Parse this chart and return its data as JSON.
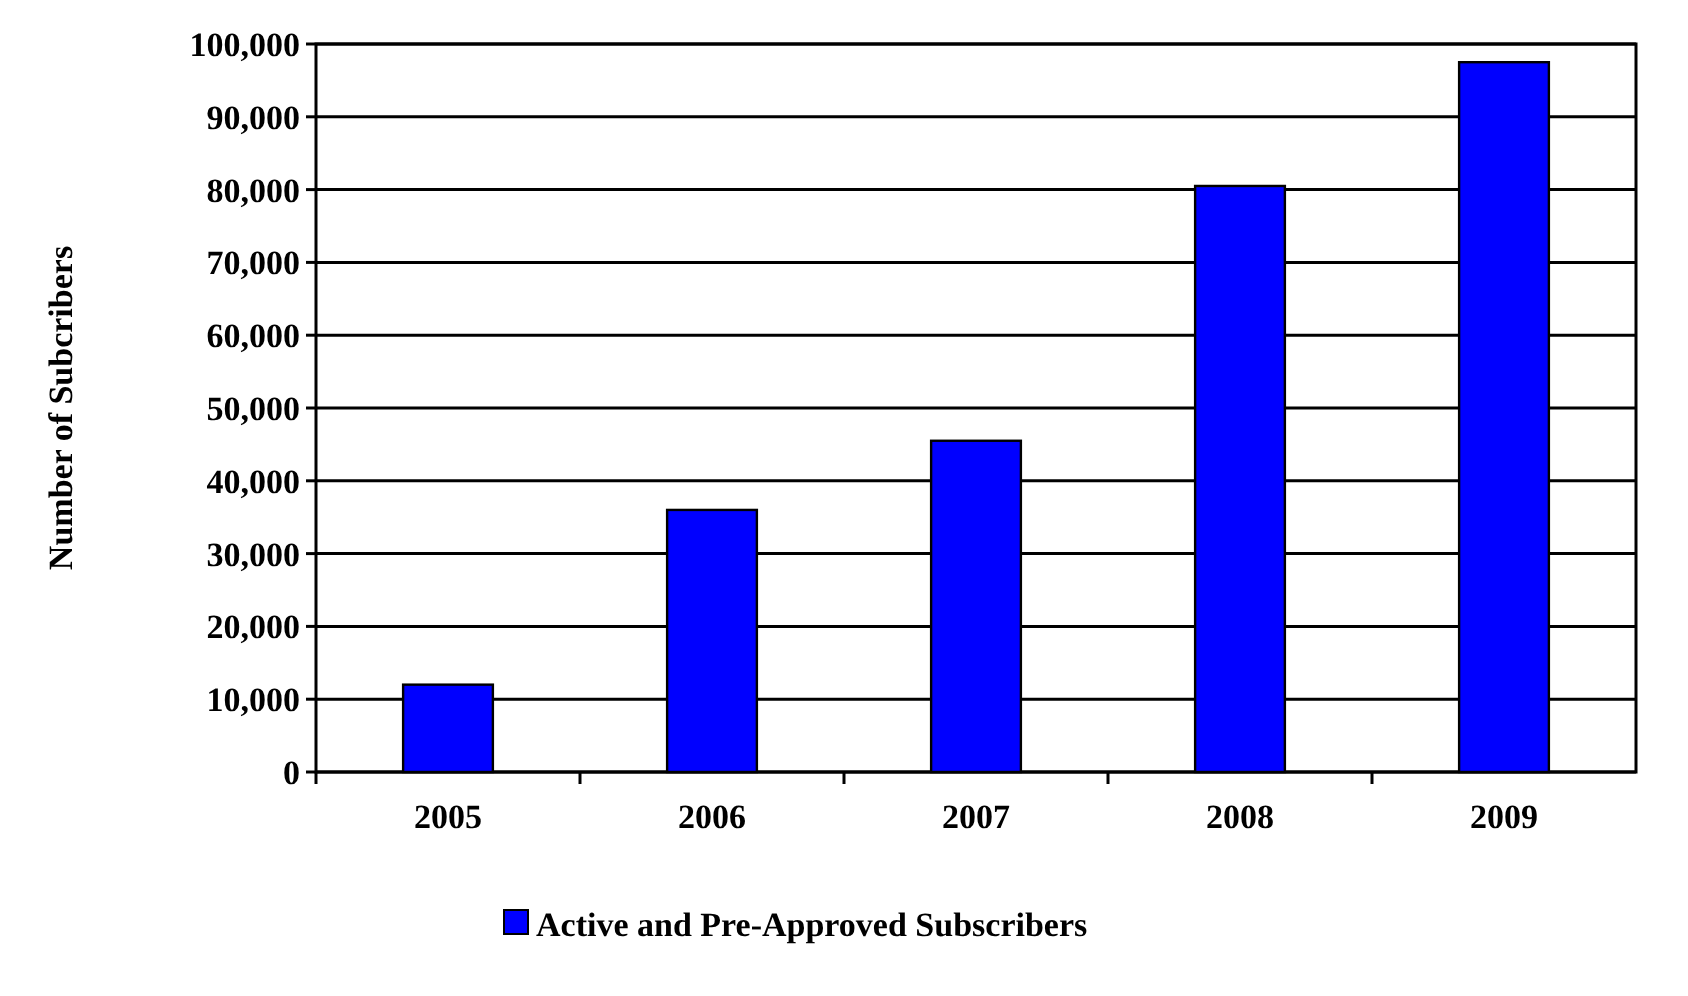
{
  "chart_data": {
    "type": "bar",
    "ylabel": "Number of Subcribers",
    "categories": [
      "2005",
      "2006",
      "2007",
      "2008",
      "2009"
    ],
    "series": [
      {
        "name": "Active and Pre-Approved Subscribers",
        "color": "#0000ff",
        "values": [
          12000,
          36000,
          45500,
          80500,
          97500
        ]
      }
    ],
    "ylim": [
      0,
      100000
    ],
    "yticks": [
      {
        "value": 0,
        "label": "0"
      },
      {
        "value": 10000,
        "label": "10,000"
      },
      {
        "value": 20000,
        "label": "20,000"
      },
      {
        "value": 30000,
        "label": "30,000"
      },
      {
        "value": 40000,
        "label": "40,000"
      },
      {
        "value": 50000,
        "label": "50,000"
      },
      {
        "value": 60000,
        "label": "60,000"
      },
      {
        "value": 70000,
        "label": "70,000"
      },
      {
        "value": 80000,
        "label": "80,000"
      },
      {
        "value": 90000,
        "label": "90,000"
      },
      {
        "value": 100000,
        "label": "100,000"
      }
    ],
    "grid": "y",
    "legend": "bottom"
  }
}
